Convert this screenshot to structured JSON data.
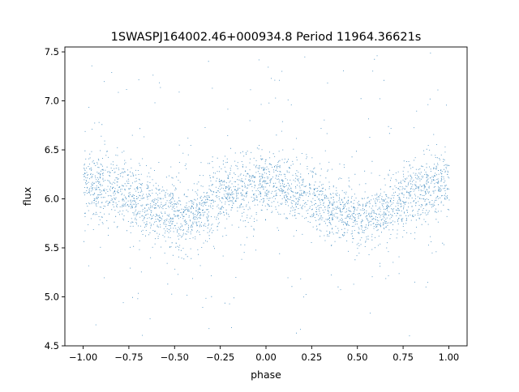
{
  "chart_data": {
    "type": "scatter",
    "title": "1SWASPJ164002.46+000934.8 Period 11964.36621s",
    "xlabel": "phase",
    "ylabel": "flux",
    "xlim": [
      -1.1,
      1.1
    ],
    "ylim": [
      4.5,
      7.55
    ],
    "xticks": [
      -1.0,
      -0.75,
      -0.5,
      -0.25,
      0.0,
      0.25,
      0.5,
      0.75,
      1.0
    ],
    "xtick_labels": [
      "−1.00",
      "−0.75",
      "−0.50",
      "−0.25",
      "0.00",
      "0.25",
      "0.50",
      "0.75",
      "1.00"
    ],
    "yticks": [
      4.5,
      5.0,
      5.5,
      6.0,
      6.5,
      7.0,
      7.5
    ],
    "ytick_labels": [
      "4.5",
      "5.0",
      "5.5",
      "6.0",
      "6.5",
      "7.0",
      "7.5"
    ],
    "grid": false,
    "point_color": "#1f77b4",
    "series": [
      {
        "x_range": [
          -1.0,
          1.0
        ],
        "curve": {
          "phase": [
            -1.0,
            -0.9,
            -0.8,
            -0.7,
            -0.6,
            -0.5,
            -0.45,
            -0.4,
            -0.3,
            -0.2,
            -0.1,
            0.0,
            0.05,
            0.1,
            0.2,
            0.3,
            0.4,
            0.5,
            0.55,
            0.6,
            0.7,
            0.8,
            0.9,
            1.0
          ],
          "flux": [
            6.13,
            6.12,
            6.08,
            6.0,
            5.9,
            5.82,
            5.8,
            5.84,
            5.97,
            6.08,
            6.14,
            6.16,
            6.15,
            6.13,
            6.07,
            5.98,
            5.88,
            5.8,
            5.79,
            5.83,
            5.95,
            6.06,
            6.12,
            6.14
          ]
        },
        "scatter_sigma": 0.15,
        "n_points": 18000,
        "outlier_range": [
          4.6,
          7.5
        ]
      }
    ]
  }
}
